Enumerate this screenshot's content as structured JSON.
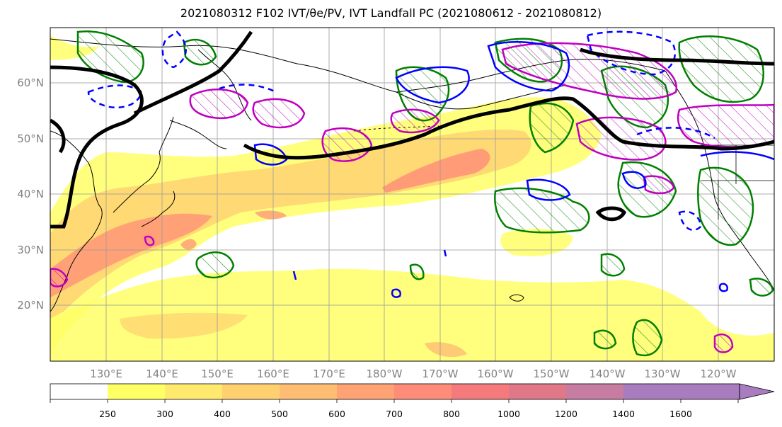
{
  "title": "2021080312 F102 IVT/θe/PV, IVT Landfall PC (2021080612 - 2021080812)",
  "lat_labels": [
    "60°N",
    "50°N",
    "40°N",
    "30°N",
    "20°N"
  ],
  "lon_labels": [
    "130°E",
    "140°E",
    "150°E",
    "160°E",
    "170°E",
    "180°W",
    "170°W",
    "160°W",
    "150°W",
    "140°W",
    "130°W",
    "120°W"
  ],
  "colorbar": {
    "levels": [
      "250",
      "300",
      "400",
      "500",
      "600",
      "700",
      "800",
      "1000",
      "1200",
      "1400",
      "1600"
    ],
    "colors": [
      "#ffffff",
      "#ffff66",
      "#ffea6e",
      "#ffd070",
      "#ffbd74",
      "#ffa274",
      "#ff8c78",
      "#f57a7c",
      "#e07888",
      "#c77ca2",
      "#a97bbf",
      "#a97bbf"
    ]
  },
  "contour_colors": {
    "ivt_shading": "#ffff66",
    "theta_e": "#000000",
    "pv_positive": "#0000ff",
    "landfall_pc": "#008000",
    "magenta": "#c000c0"
  }
}
